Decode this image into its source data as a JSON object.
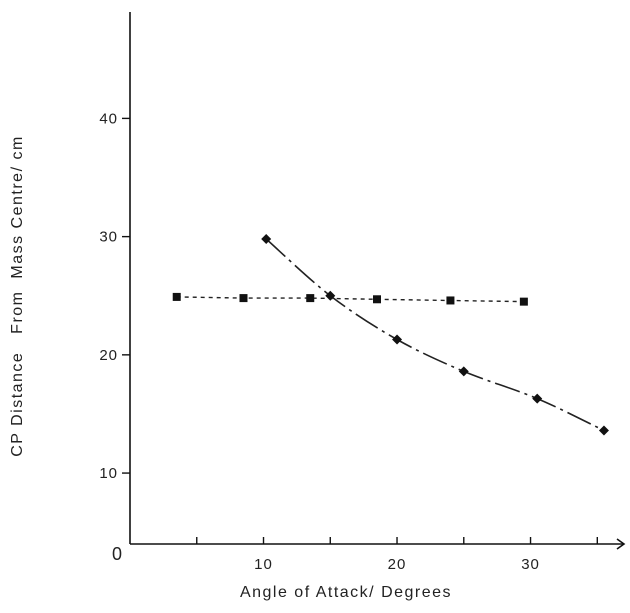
{
  "chart_data": {
    "type": "line",
    "xlabel": "Angle of Attack/ Degrees",
    "ylabel": "CP Distance   From  Mass Centre/ cm",
    "origin_label": "0",
    "xlim": [
      0,
      37
    ],
    "ylim": [
      4,
      49
    ],
    "x_ticks": [
      5,
      10,
      15,
      20,
      25,
      30,
      35
    ],
    "x_tick_labels": [
      {
        "value": 10,
        "label": "10"
      },
      {
        "value": 20,
        "label": "20"
      },
      {
        "value": 30,
        "label": "30"
      }
    ],
    "y_ticks": [
      10,
      20,
      30,
      40
    ],
    "y_tick_labels": [
      {
        "value": 10,
        "label": "10"
      },
      {
        "value": 20,
        "label": "20"
      },
      {
        "value": 30,
        "label": "30"
      },
      {
        "value": 40,
        "label": "40"
      }
    ],
    "grid": false,
    "series": [
      {
        "style": "dashed",
        "marker": "square",
        "x": [
          3.5,
          8.5,
          13.5,
          18.5,
          24,
          29.5
        ],
        "y": [
          24.9,
          24.8,
          24.8,
          24.7,
          24.6,
          24.5
        ]
      },
      {
        "style": "dash-dot",
        "marker": "diamond",
        "x": [
          10.2,
          15,
          20,
          25,
          30.5,
          35.5
        ],
        "y": [
          29.8,
          25.0,
          21.3,
          18.6,
          16.3,
          13.6
        ]
      }
    ]
  }
}
